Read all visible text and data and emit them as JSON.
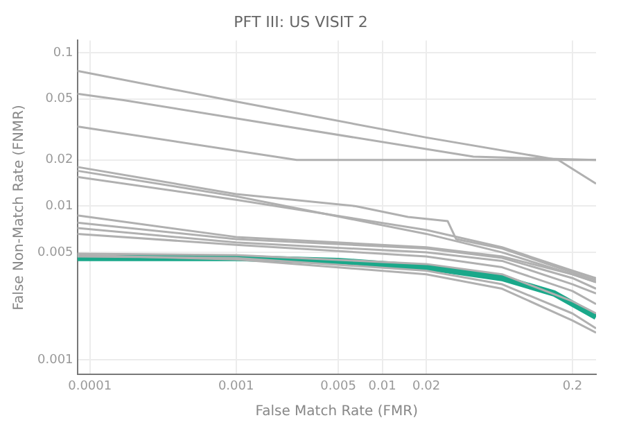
{
  "chart_data": {
    "type": "line",
    "title": "PFT III: US VISIT 2",
    "xlabel": "False Match Rate (FMR)",
    "ylabel": "False Non-Match Rate (FNMR)",
    "log": "xy",
    "grid": true,
    "legend": false,
    "marker": "none",
    "line_style": "solid",
    "xlim": [
      8.2e-05,
      0.29
    ],
    "ylim": [
      0.0008,
      0.12
    ],
    "xticks": [
      0.0001,
      0.001,
      0.005,
      0.01,
      0.02,
      0.2
    ],
    "yticks": [
      0.001,
      0.005,
      0.01,
      0.02,
      0.05,
      0.1
    ],
    "series": [
      {
        "color": "#b0b0b0",
        "x": [
          8.2e-05,
          0.001,
          0.02,
          0.16,
          0.29
        ],
        "values": [
          0.076,
          0.048,
          0.028,
          0.02,
          0.014
        ]
      },
      {
        "color": "#b0b0b0",
        "x": [
          8.2e-05,
          0.00017,
          0.042,
          0.29
        ],
        "values": [
          0.054,
          0.049,
          0.021,
          0.02
        ]
      },
      {
        "color": "#b0b0b0",
        "x": [
          8.2e-05,
          0.0026,
          0.29
        ],
        "values": [
          0.033,
          0.02,
          0.02
        ]
      },
      {
        "color": "#b0b0b0",
        "x": [
          8.2e-05,
          0.001,
          0.0066,
          0.015,
          0.028,
          0.032,
          0.066,
          0.2,
          0.29
        ],
        "values": [
          0.018,
          0.012,
          0.01,
          0.0085,
          0.008,
          0.0061,
          0.0053,
          0.0037,
          0.0033
        ]
      },
      {
        "color": "#b0b0b0",
        "x": [
          8.2e-05,
          0.001,
          0.02,
          0.066,
          0.2,
          0.29
        ],
        "values": [
          0.0155,
          0.011,
          0.007,
          0.0054,
          0.0038,
          0.0034
        ]
      },
      {
        "color": "#b0b0b0",
        "x": [
          8.2e-05,
          0.001,
          0.02,
          0.066,
          0.2,
          0.29
        ],
        "values": [
          0.017,
          0.0116,
          0.0066,
          0.005,
          0.0036,
          0.0032
        ]
      },
      {
        "color": "#b0b0b0",
        "x": [
          8.2e-05,
          0.001,
          0.02,
          0.066,
          0.2,
          0.29
        ],
        "values": [
          0.0087,
          0.0063,
          0.0054,
          0.0047,
          0.0036,
          0.0032
        ]
      },
      {
        "color": "#b0b0b0",
        "x": [
          8.2e-05,
          0.001,
          0.02,
          0.066,
          0.2,
          0.29
        ],
        "values": [
          0.0078,
          0.0061,
          0.0053,
          0.0046,
          0.0034,
          0.0029
        ]
      },
      {
        "color": "#b0b0b0",
        "x": [
          8.2e-05,
          0.001,
          0.02,
          0.066,
          0.2,
          0.29
        ],
        "values": [
          0.0072,
          0.0058,
          0.005,
          0.0044,
          0.0031,
          0.0027
        ]
      },
      {
        "color": "#b0b0b0",
        "x": [
          8.2e-05,
          0.001,
          0.02,
          0.066,
          0.2,
          0.29
        ],
        "values": [
          0.0066,
          0.0056,
          0.0047,
          0.004,
          0.0028,
          0.0023
        ]
      },
      {
        "color": "#b0b0b0",
        "x": [
          8.2e-05,
          0.001,
          0.02,
          0.066,
          0.2,
          0.29
        ],
        "values": [
          0.0049,
          0.0048,
          0.0042,
          0.0036,
          0.0024,
          0.002
        ]
      },
      {
        "color": "#b0b0b0",
        "x": [
          8.2e-05,
          0.001,
          0.02,
          0.066,
          0.2,
          0.29
        ],
        "values": [
          0.0047,
          0.0046,
          0.0038,
          0.0031,
          0.002,
          0.0016
        ]
      },
      {
        "color": "#b0b0b0",
        "x": [
          8.2e-05,
          0.001,
          0.02,
          0.066,
          0.2,
          0.29
        ],
        "values": [
          0.0048,
          0.0045,
          0.0036,
          0.0029,
          0.0018,
          0.0015
        ]
      },
      {
        "color": "#1aa88a",
        "x": [
          8.2e-05,
          0.001,
          0.005,
          0.02,
          0.066,
          0.15,
          0.29
        ],
        "values": [
          0.0046,
          0.0046,
          0.0044,
          0.004,
          0.0034,
          0.0027,
          0.0019
        ]
      }
    ]
  }
}
